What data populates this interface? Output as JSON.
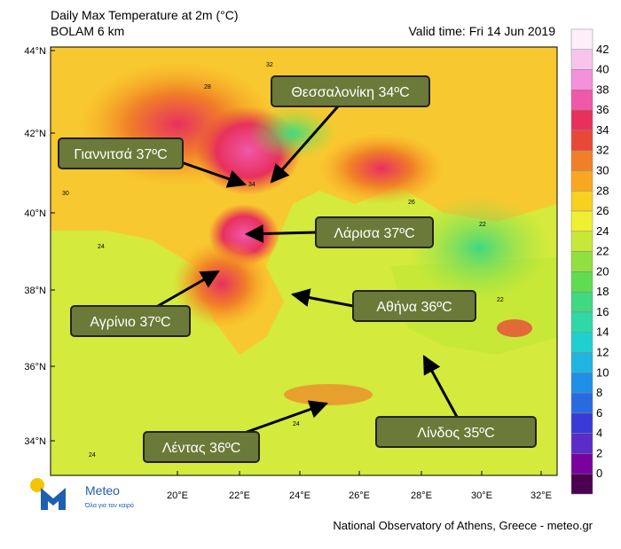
{
  "header": {
    "title": "Daily Max Temperature at 2m (°C)",
    "subtitle": "BOLAM 6 km",
    "valid_time": "Valid time: Fri 14 Jun 2019"
  },
  "map": {
    "lat_labels": [
      "44°N",
      "42°N",
      "40°N",
      "38°N",
      "36°N",
      "34°N"
    ],
    "lon_labels": [
      "20°E",
      "22°E",
      "24°E",
      "26°E",
      "28°E",
      "30°E",
      "32°E"
    ],
    "field_labels": [
      "24",
      "28",
      "30",
      "32",
      "26",
      "22",
      "24",
      "34",
      "24",
      "22"
    ]
  },
  "callouts": [
    "Θεσσαλονίκη 34ºC",
    "Γιαννιτσά 37ºC",
    "Λάρισα 37ºC",
    "Αθήνα 36ºC",
    "Αγρίνιο 37ºC",
    "Λίνδος 35ºC",
    "Λέντας 36ºC"
  ],
  "colorbar": {
    "ticks": [
      42,
      40,
      38,
      36,
      34,
      32,
      30,
      28,
      26,
      24,
      22,
      20,
      18,
      16,
      14,
      12,
      10,
      8,
      6,
      4,
      2,
      0
    ],
    "colors": [
      "#fdeefa",
      "#f8c4ec",
      "#f590dc",
      "#f058a8",
      "#e8305c",
      "#e84838",
      "#f08028",
      "#f8a820",
      "#f8d020",
      "#f0f030",
      "#c8e838",
      "#90e040",
      "#60dc50",
      "#40d880",
      "#30d8a8",
      "#20d0d0",
      "#20b4e0",
      "#1e90e8",
      "#2a6ae0",
      "#3a3ad8",
      "#5a2dc8",
      "#7a00a0",
      "#4b0050"
    ]
  },
  "logo": {
    "name": "Meteo",
    "tagline": "Όλα για τον καιρό"
  },
  "footer": "National Observatory of Athens, Greece - meteo.gr"
}
